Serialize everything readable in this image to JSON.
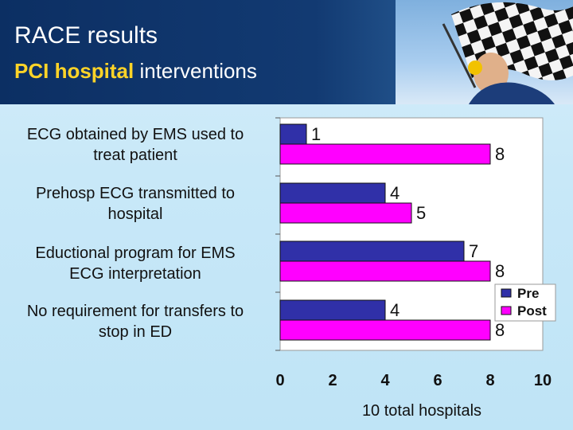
{
  "slide": {
    "title": "RACE results",
    "subtitle_highlight": "PCI hospital",
    "subtitle_rest": " interventions"
  },
  "colors": {
    "header_bg": "#0c2f63",
    "highlight": "#ffd428",
    "pre": "#3030a8",
    "post": "#ff00ff"
  },
  "photo": {
    "icon": "checkered-flag-icon"
  },
  "chart_data": {
    "type": "bar",
    "orientation": "horizontal",
    "categories": [
      "ECG obtained by EMS used to\ntreat patient",
      "Prehosp ECG transmitted to\nhospital",
      "Eductional program for EMS\nECG interpretation",
      "No requirement for transfers to\nstop in ED"
    ],
    "series": [
      {
        "name": "Pre",
        "values": [
          1,
          4,
          7,
          4
        ]
      },
      {
        "name": "Post",
        "values": [
          8,
          5,
          8,
          8
        ]
      }
    ],
    "xlim": [
      0,
      10
    ],
    "xticks": [
      "0",
      "2",
      "4",
      "6",
      "8",
      "10"
    ],
    "xlabel": "10 total hospitals",
    "legend": "right",
    "grid": false
  }
}
